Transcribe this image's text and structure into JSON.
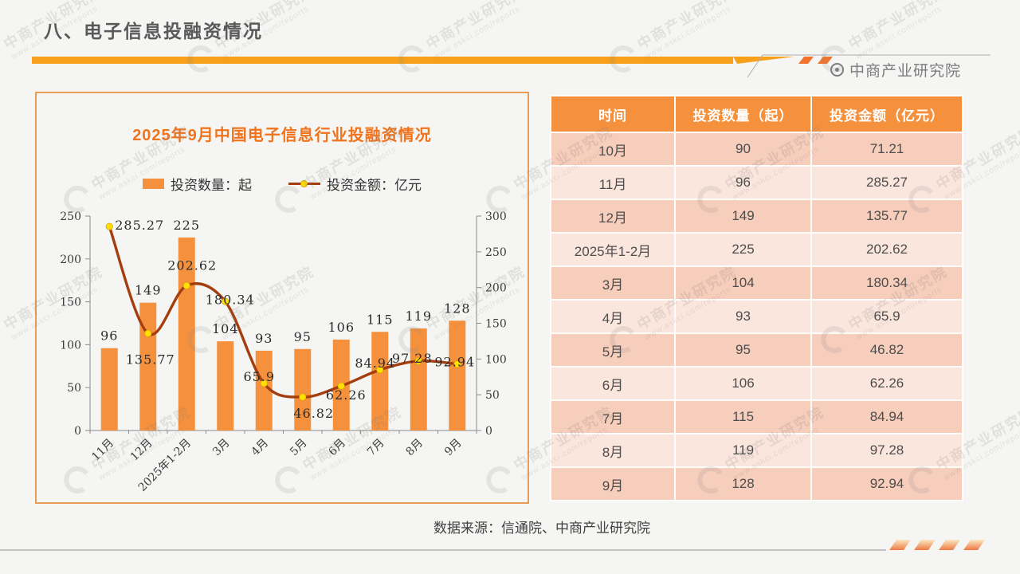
{
  "page": {
    "title": "八、电子信息投融资情况",
    "brand": "中商产业研究院",
    "source_note": "数据来源：信通院、中商产业研究院",
    "watermark_text": "中商产业研究院",
    "watermark_subtext": "www.askci.com/reports"
  },
  "colors": {
    "accent_orange": "#F5913D",
    "header_bar_orange": "#F7A01B",
    "chart_border": "#E99C53",
    "chart_title": "#F0741D",
    "line": "#A53E0E",
    "marker_yellow": "#FFDF00",
    "table_header_bg": "#F5913D",
    "table_row_dark": "#F7CDBB",
    "table_row_light": "#FBE6DD",
    "title_text": "#595959",
    "axis": "#8C8C8C"
  },
  "chart_data": {
    "type": "bar",
    "subtype": "combo-bar-line-dual-axis",
    "title": "2025年9月中国电子信息行业投融资情况",
    "categories": [
      "11月",
      "12月",
      "2025年1-2月",
      "3月",
      "4月",
      "5月",
      "6月",
      "7月",
      "8月",
      "9月"
    ],
    "series": [
      {
        "name": "投资数量：起",
        "type": "bar",
        "axis": "left",
        "values": [
          96,
          149,
          225,
          104,
          93,
          95,
          106,
          115,
          119,
          128
        ]
      },
      {
        "name": "投资金额：亿元",
        "type": "line",
        "axis": "right",
        "values": [
          285.27,
          135.77,
          202.62,
          180.34,
          65.9,
          46.82,
          62.26,
          84.94,
          97.28,
          92.94
        ]
      }
    ],
    "left_axis": {
      "min": 0,
      "max": 250,
      "step": 50
    },
    "right_axis": {
      "min": 0,
      "max": 300,
      "step": 50
    },
    "legend_position": "top",
    "grid": false,
    "data_labels": true
  },
  "table": {
    "headers": [
      "时间",
      "投资数量（起）",
      "投资金额（亿元）"
    ],
    "rows": [
      [
        "10月",
        "90",
        "71.21"
      ],
      [
        "11月",
        "96",
        "285.27"
      ],
      [
        "12月",
        "149",
        "135.77"
      ],
      [
        "2025年1-2月",
        "225",
        "202.62"
      ],
      [
        "3月",
        "104",
        "180.34"
      ],
      [
        "4月",
        "93",
        "65.9"
      ],
      [
        "5月",
        "95",
        "46.82"
      ],
      [
        "6月",
        "106",
        "62.26"
      ],
      [
        "7月",
        "115",
        "84.94"
      ],
      [
        "8月",
        "119",
        "97.28"
      ],
      [
        "9月",
        "128",
        "92.94"
      ]
    ]
  }
}
